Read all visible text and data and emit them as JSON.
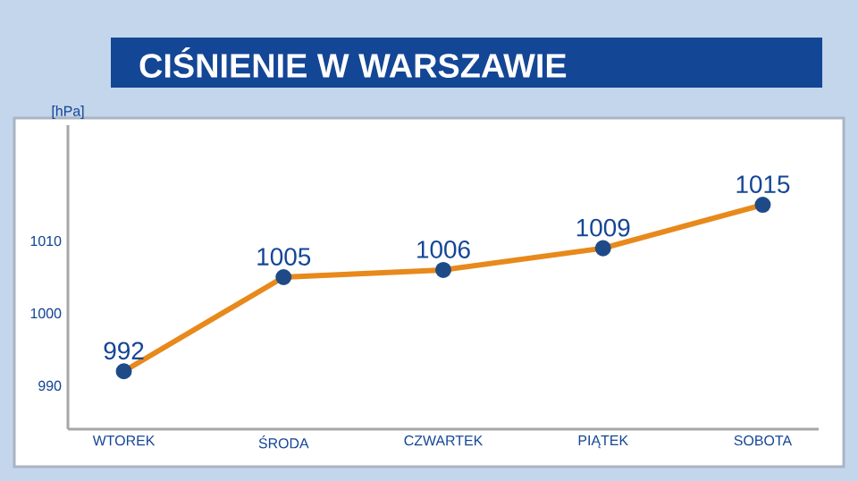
{
  "chart_data": {
    "type": "line",
    "title": "CIŚNIENIE W WARSZAWIE",
    "ylabel": "[hPa]",
    "categories": [
      "WTOREK",
      "ŚRODA",
      "CZWARTEK",
      "PIĄTEK",
      "SOBOTA"
    ],
    "values": [
      992,
      1005,
      1006,
      1009,
      1015
    ],
    "color": "#e8891c",
    "ylim": [
      984,
      1026
    ],
    "yticks": [
      990,
      1000,
      1010
    ],
    "data_labels": true,
    "marker": "circle",
    "grid": false
  }
}
